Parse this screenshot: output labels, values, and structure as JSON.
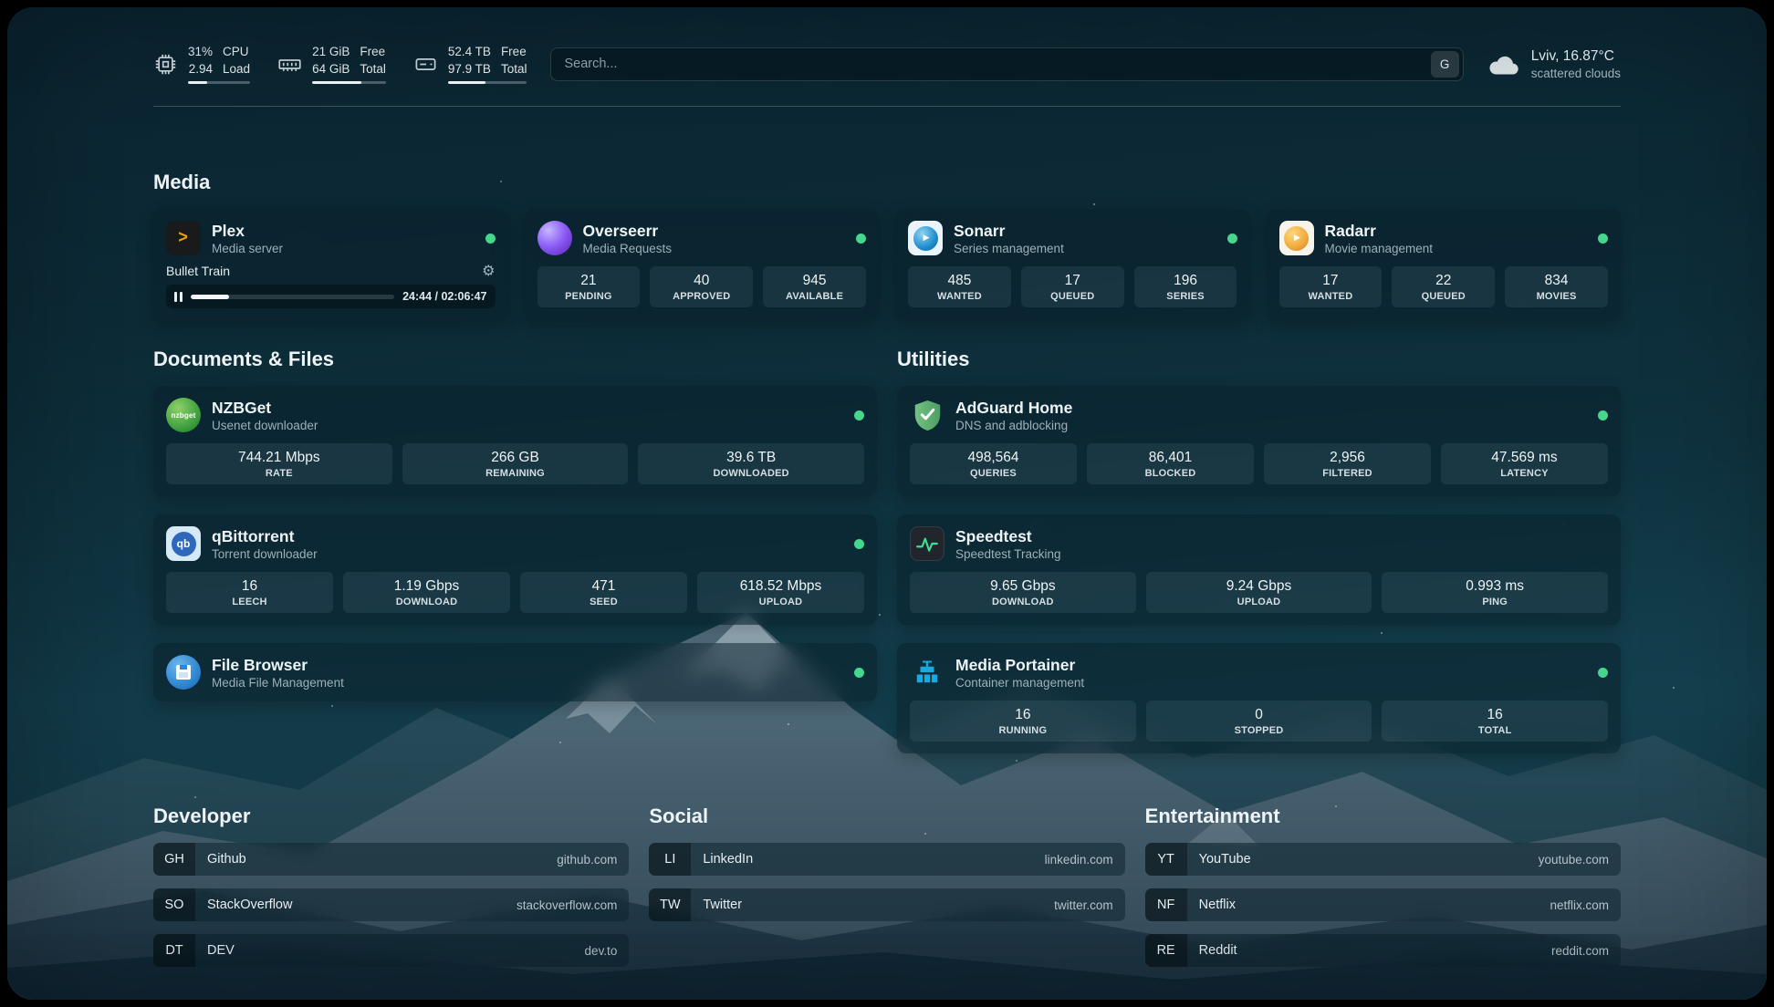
{
  "header": {
    "cpu": {
      "value1": "31%",
      "label1": "CPU",
      "value2": "2.94",
      "label2": "Load",
      "bar_percent": 31
    },
    "memory": {
      "value1": "21 GiB",
      "label1": "Free",
      "value2": "64 GiB",
      "label2": "Total",
      "bar_percent": 67
    },
    "disk": {
      "value1": "52.4 TB",
      "label1": "Free",
      "value2": "97.9 TB",
      "label2": "Total",
      "bar_percent": 47
    },
    "search": {
      "placeholder": "Search...",
      "provider_label": "G"
    },
    "weather": {
      "location": "Lviv, 16.87°C",
      "condition": "scattered clouds"
    }
  },
  "media": {
    "title": "Media",
    "plex": {
      "name": "Plex",
      "subtitle": "Media server",
      "now_playing": "Bullet Train",
      "time": "24:44 / 02:06:47",
      "progress_percent": 19
    },
    "overseerr": {
      "name": "Overseerr",
      "subtitle": "Media Requests",
      "stats": [
        {
          "value": "21",
          "label": "PENDING"
        },
        {
          "value": "40",
          "label": "APPROVED"
        },
        {
          "value": "945",
          "label": "AVAILABLE"
        }
      ]
    },
    "sonarr": {
      "name": "Sonarr",
      "subtitle": "Series management",
      "stats": [
        {
          "value": "485",
          "label": "WANTED"
        },
        {
          "value": "17",
          "label": "QUEUED"
        },
        {
          "value": "196",
          "label": "SERIES"
        }
      ]
    },
    "radarr": {
      "name": "Radarr",
      "subtitle": "Movie management",
      "stats": [
        {
          "value": "17",
          "label": "WANTED"
        },
        {
          "value": "22",
          "label": "QUEUED"
        },
        {
          "value": "834",
          "label": "MOVIES"
        }
      ]
    }
  },
  "documents": {
    "title": "Documents & Files",
    "nzbget": {
      "name": "NZBGet",
      "subtitle": "Usenet downloader",
      "stats": [
        {
          "value": "744.21 Mbps",
          "label": "RATE"
        },
        {
          "value": "266 GB",
          "label": "REMAINING"
        },
        {
          "value": "39.6 TB",
          "label": "DOWNLOADED"
        }
      ]
    },
    "qbittorrent": {
      "name": "qBittorrent",
      "subtitle": "Torrent downloader",
      "stats": [
        {
          "value": "16",
          "label": "LEECH"
        },
        {
          "value": "1.19 Gbps",
          "label": "DOWNLOAD"
        },
        {
          "value": "471",
          "label": "SEED"
        },
        {
          "value": "618.52 Mbps",
          "label": "UPLOAD"
        }
      ]
    },
    "filebrowser": {
      "name": "File Browser",
      "subtitle": "Media File Management"
    }
  },
  "utilities": {
    "title": "Utilities",
    "adguard": {
      "name": "AdGuard Home",
      "subtitle": "DNS and adblocking",
      "stats": [
        {
          "value": "498,564",
          "label": "QUERIES"
        },
        {
          "value": "86,401",
          "label": "BLOCKED"
        },
        {
          "value": "2,956",
          "label": "FILTERED"
        },
        {
          "value": "47.569 ms",
          "label": "LATENCY"
        }
      ]
    },
    "speedtest": {
      "name": "Speedtest",
      "subtitle": "Speedtest Tracking",
      "stats": [
        {
          "value": "9.65 Gbps",
          "label": "DOWNLOAD"
        },
        {
          "value": "9.24 Gbps",
          "label": "UPLOAD"
        },
        {
          "value": "0.993 ms",
          "label": "PING"
        }
      ]
    },
    "portainer": {
      "name": "Media Portainer",
      "subtitle": "Container management",
      "stats": [
        {
          "value": "16",
          "label": "RUNNING"
        },
        {
          "value": "0",
          "label": "STOPPED"
        },
        {
          "value": "16",
          "label": "TOTAL"
        }
      ]
    }
  },
  "bookmarks": {
    "developer": {
      "title": "Developer",
      "items": [
        {
          "abbr": "GH",
          "name": "Github",
          "url": "github.com"
        },
        {
          "abbr": "SO",
          "name": "StackOverflow",
          "url": "stackoverflow.com"
        },
        {
          "abbr": "DT",
          "name": "DEV",
          "url": "dev.to"
        }
      ]
    },
    "social": {
      "title": "Social",
      "items": [
        {
          "abbr": "LI",
          "name": "LinkedIn",
          "url": "linkedin.com"
        },
        {
          "abbr": "TW",
          "name": "Twitter",
          "url": "twitter.com"
        }
      ]
    },
    "entertainment": {
      "title": "Entertainment",
      "items": [
        {
          "abbr": "YT",
          "name": "YouTube",
          "url": "youtube.com"
        },
        {
          "abbr": "NF",
          "name": "Netflix",
          "url": "netflix.com"
        },
        {
          "abbr": "RE",
          "name": "Reddit",
          "url": "reddit.com"
        }
      ]
    }
  },
  "icons": {
    "cpu": "chip-outline",
    "memory": "ram-outline",
    "disk": "drive-outline",
    "weather": "cloud",
    "settings": "gear",
    "pause": "pause-bars",
    "status": "green-dot"
  },
  "colors": {
    "status_online": "#46d68c",
    "plex_amber": "#e5a00d",
    "overseerr_purple": "#8b5cf6",
    "sonarr_blue": "#1f8dcb",
    "radarr_amber": "#f0a93c",
    "nzbget_green": "#3da03d",
    "qbittorrent_blue": "#2f67ba",
    "filebrowser_blue": "#2e86d0",
    "adguard_green": "#68b279",
    "speedtest_green": "#3ddc97",
    "portainer_blue": "#1aa8e0"
  }
}
